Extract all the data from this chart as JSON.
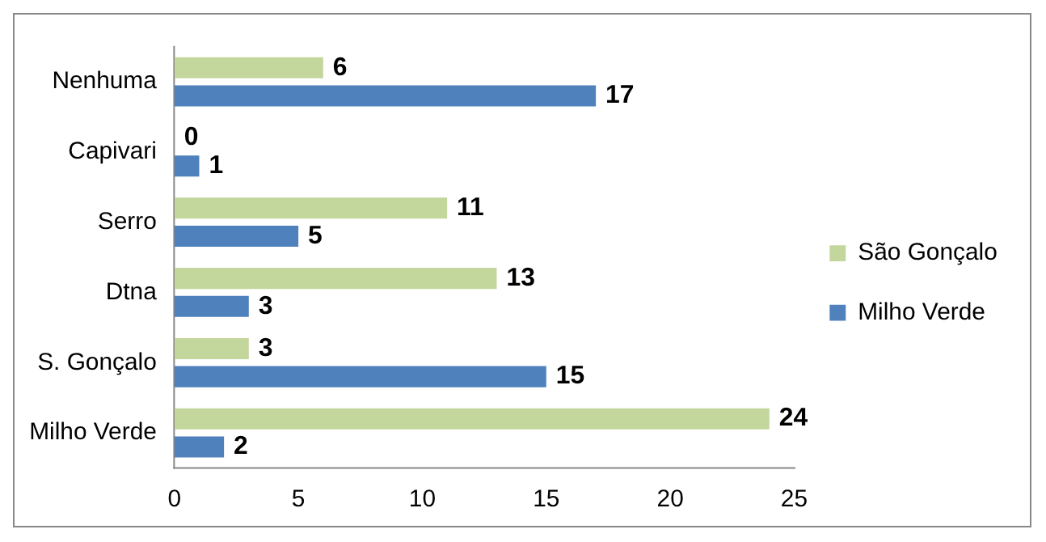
{
  "chart_data": {
    "type": "bar",
    "orientation": "horizontal",
    "categories": [
      "Nenhuma",
      "Capivari",
      "Serro",
      "Dtna",
      "S. Gonçalo",
      "Milho Verde"
    ],
    "series": [
      {
        "name": "São Gonçalo",
        "color": "#c3d69b",
        "values": [
          6,
          0,
          11,
          13,
          3,
          24
        ]
      },
      {
        "name": "Milho Verde",
        "color": "#4f81bd",
        "values": [
          17,
          1,
          5,
          3,
          15,
          2
        ]
      }
    ],
    "xlim": [
      0,
      25
    ],
    "xticks": [
      0,
      5,
      10,
      15,
      20,
      25
    ],
    "grid": false,
    "legend": "right",
    "data_labels": true
  }
}
